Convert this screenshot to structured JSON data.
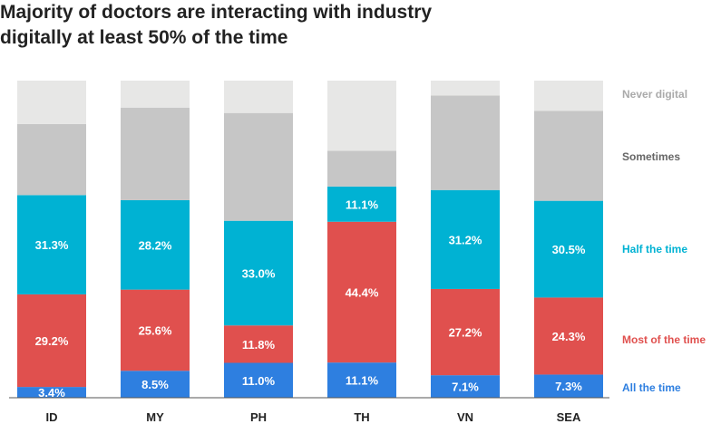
{
  "chart_data": {
    "type": "bar",
    "stacked": true,
    "title": "Majority of doctors are interacting with industry digitally at least 50% of the time",
    "title_lines": [
      "Majority of doctors are interacting with industry",
      "digitally at least 50% of the time"
    ],
    "categories": [
      "ID",
      "MY",
      "PH",
      "TH",
      "VN",
      "SEA"
    ],
    "ylim": [
      0,
      100
    ],
    "grid": false,
    "legend_placement": "right",
    "series": [
      {
        "name": "All the time",
        "color": "#2e7fe0",
        "values": [
          3.4,
          8.5,
          11.0,
          11.1,
          7.1,
          7.3
        ],
        "labels": [
          "3.4%",
          "8.5%",
          "11.0%",
          "11.1%",
          "7.1%",
          "7.3%"
        ]
      },
      {
        "name": "Most of the time",
        "color": "#e0504e",
        "values": [
          29.2,
          25.6,
          11.8,
          44.4,
          27.2,
          24.3
        ],
        "labels": [
          "29.2%",
          "25.6%",
          "11.8%",
          "44.4%",
          "27.2%",
          "24.3%"
        ]
      },
      {
        "name": "Half the time",
        "color": "#00b2d3",
        "values": [
          31.3,
          28.2,
          33.0,
          11.1,
          31.2,
          30.5
        ],
        "labels": [
          "31.3%",
          "28.2%",
          "33.0%",
          "11.1%",
          "31.2%",
          "30.5%"
        ]
      },
      {
        "name": "Sometimes",
        "color": "#c6c6c6",
        "values": [
          22.4,
          29.2,
          34.0,
          11.3,
          29.8,
          28.4
        ],
        "labels": [
          "",
          "",
          "",
          "",
          "",
          ""
        ]
      },
      {
        "name": "Never digital",
        "color": "#e7e7e6",
        "values": [
          13.7,
          8.5,
          10.2,
          22.1,
          4.7,
          9.5
        ],
        "labels": [
          "",
          "",
          "",
          "",
          "",
          ""
        ]
      }
    ],
    "legend_text_colors": [
      "#2e7fe0",
      "#e0504e",
      "#00b2d3",
      "#666666",
      "#aaaaaa"
    ]
  }
}
